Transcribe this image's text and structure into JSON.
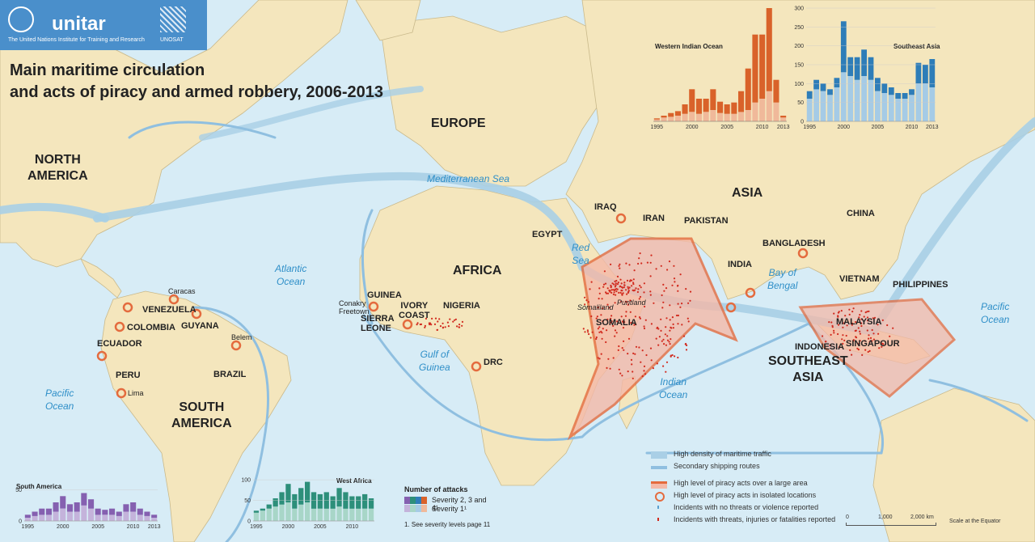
{
  "header": {
    "un_label": "The United Nations Institute for Training and Research",
    "brand": "unitar",
    "unosat": "UNOSAT"
  },
  "title": {
    "line1": "Main maritime circulation",
    "line2": "and acts of piracy and armed robbery, 2006-2013"
  },
  "continents": {
    "north_america": "NORTH\nAMERICA",
    "south_america": "SOUTH\nAMERICA",
    "europe": "EUROPE",
    "africa": "AFRICA",
    "asia": "ASIA",
    "southeast_asia": "SOUTHEAST\nASIA"
  },
  "countries": {
    "venezuela": "VENEZUELA",
    "colombia": "COLOMBIA",
    "guyana": "GUYANA",
    "ecuador": "ECUADOR",
    "peru": "PERU",
    "brazil": "BRAZIL",
    "guinea": "GUINEA",
    "sierra_leone": "SIERRA\nLEONE",
    "ivory_coast": "IVORY\nCOAST",
    "nigeria": "NIGERIA",
    "drc": "DRC",
    "egypt": "EGYPT",
    "somalia": "SOMALIA",
    "iraq": "IRAQ",
    "iran": "IRAN",
    "pakistan": "PAKISTAN",
    "india": "INDIA",
    "bangladesh": "BANGLADESH",
    "china": "CHINA",
    "vietnam": "VIETNAM",
    "philippines": "PHILIPPINES",
    "malaysia": "MALAYSIA",
    "singapore": "SINGAPOUR",
    "indonesia": "INDONESIA"
  },
  "places": {
    "caracas": "Caracas",
    "belem": "Belem",
    "lima": "Lima",
    "conakry": "Conakry",
    "freetown": "Freetown",
    "somaliland": "Somaliland",
    "puntland": "Puntland"
  },
  "seas": {
    "atlantic": "Atlantic\nOcean",
    "pacific_w": "Pacific\nOcean",
    "pacific_e": "Pacific\nOcean",
    "mediterranean": "Mediterranean Sea",
    "red_sea": "Red\nSea",
    "gulf_guinea": "Gulf of\nGuinea",
    "bay_bengal": "Bay of\nBengal",
    "indian": "Indian\nOcean"
  },
  "legend": {
    "items": [
      {
        "text": "High density of maritime traffic",
        "color": "#a9cfe6"
      },
      {
        "text": "Secondary shipping routes",
        "color": "#8fbfe0"
      },
      {
        "text": "High level of piracy acts over a large area",
        "color": "#f4b9a8"
      },
      {
        "text": "High level of piracy acts in isolated locations",
        "color": "#e46b3e"
      },
      {
        "text": "Incidents with no threats or violence reported",
        "color": "#5aa0d0"
      },
      {
        "text": "Incidents with threats, injuries or fatalities reported",
        "color": "#d12a1e"
      }
    ],
    "attacks_title": "Number of attacks",
    "severity_a": "Severity 2, 3 and 4¹",
    "severity_b": "Severity 1¹",
    "footnote": "1. See severity levels page 11"
  },
  "scale": {
    "t0": "0",
    "t1": "1,000",
    "t2": "2,000 km",
    "note": "Scale at the Equator"
  },
  "colors": {
    "ocean": "#d7ecf6",
    "land": "#f4e6bd",
    "traffic": "#a9cfe6",
    "route": "#8fbfe0",
    "piracy": "#f4b9a8",
    "ring": "#e46b3e",
    "incident": "#d12a1e"
  },
  "chart_data": [
    {
      "type": "bar",
      "title": "Western Indian Ocean",
      "x": [
        1995,
        1996,
        1997,
        1998,
        1999,
        2000,
        2001,
        2002,
        2003,
        2004,
        2005,
        2006,
        2007,
        2008,
        2009,
        2010,
        2011,
        2012,
        2013
      ],
      "series": [
        {
          "values": [
            5,
            10,
            12,
            15,
            20,
            25,
            20,
            25,
            30,
            22,
            20,
            20,
            25,
            30,
            50,
            60,
            80,
            50,
            10
          ]
        },
        {
          "values": [
            3,
            5,
            10,
            12,
            25,
            60,
            40,
            35,
            55,
            30,
            25,
            30,
            55,
            110,
            180,
            170,
            220,
            60,
            5
          ]
        }
      ],
      "ylim": [
        0,
        300
      ],
      "xticks": [
        "1995",
        "2000",
        "2005",
        "2010",
        "2013"
      ]
    },
    {
      "type": "bar",
      "title": "Southeast Asia",
      "x": [
        1995,
        1996,
        1997,
        1998,
        1999,
        2000,
        2001,
        2002,
        2003,
        2004,
        2005,
        2006,
        2007,
        2008,
        2009,
        2010,
        2011,
        2012,
        2013
      ],
      "series": [
        {
          "values": [
            60,
            85,
            80,
            70,
            90,
            130,
            120,
            110,
            120,
            110,
            80,
            75,
            70,
            60,
            60,
            70,
            100,
            100,
            90
          ]
        },
        {
          "values": [
            20,
            25,
            20,
            15,
            25,
            135,
            50,
            60,
            70,
            60,
            35,
            25,
            20,
            15,
            15,
            15,
            55,
            50,
            75
          ]
        }
      ],
      "ylim": [
        0,
        300
      ],
      "yticks": [
        "0",
        "50",
        "100",
        "150",
        "200",
        "250",
        "300"
      ],
      "xticks": [
        "1995",
        "2000",
        "2005",
        "2010",
        "2013"
      ]
    },
    {
      "type": "bar",
      "title": "South America",
      "x": [
        1995,
        1996,
        1997,
        1998,
        1999,
        2000,
        2001,
        2002,
        2003,
        2004,
        2005,
        2006,
        2007,
        2008,
        2009,
        2010,
        2011,
        2012,
        2013
      ],
      "series": [
        {
          "values": [
            5,
            8,
            10,
            10,
            15,
            20,
            15,
            15,
            25,
            20,
            10,
            10,
            10,
            8,
            15,
            15,
            10,
            8,
            5
          ]
        },
        {
          "values": [
            5,
            7,
            10,
            10,
            15,
            20,
            12,
            15,
            20,
            15,
            10,
            8,
            10,
            7,
            12,
            15,
            10,
            7,
            5
          ]
        }
      ],
      "ylim": [
        0,
        60
      ],
      "yticks": [
        "0",
        "50"
      ],
      "xticks": [
        "1995",
        "2000",
        "2005",
        "2010",
        "2013"
      ]
    },
    {
      "type": "bar",
      "title": "West Africa",
      "x": [
        1995,
        1996,
        1997,
        1998,
        1999,
        2000,
        2001,
        2002,
        2003,
        2004,
        2005,
        2006,
        2007,
        2008,
        2009,
        2010,
        2011,
        2012,
        2013
      ],
      "series": [
        {
          "values": [
            20,
            25,
            30,
            35,
            40,
            45,
            30,
            40,
            45,
            30,
            30,
            30,
            30,
            35,
            30,
            30,
            30,
            30,
            30
          ]
        },
        {
          "values": [
            5,
            5,
            10,
            20,
            30,
            45,
            35,
            40,
            50,
            40,
            35,
            40,
            30,
            45,
            40,
            30,
            30,
            35,
            25
          ]
        }
      ],
      "ylim": [
        0,
        110
      ],
      "yticks": [
        "0",
        "50",
        "100"
      ],
      "xticks": [
        "1995",
        "2000",
        "2005",
        "2010"
      ]
    }
  ]
}
